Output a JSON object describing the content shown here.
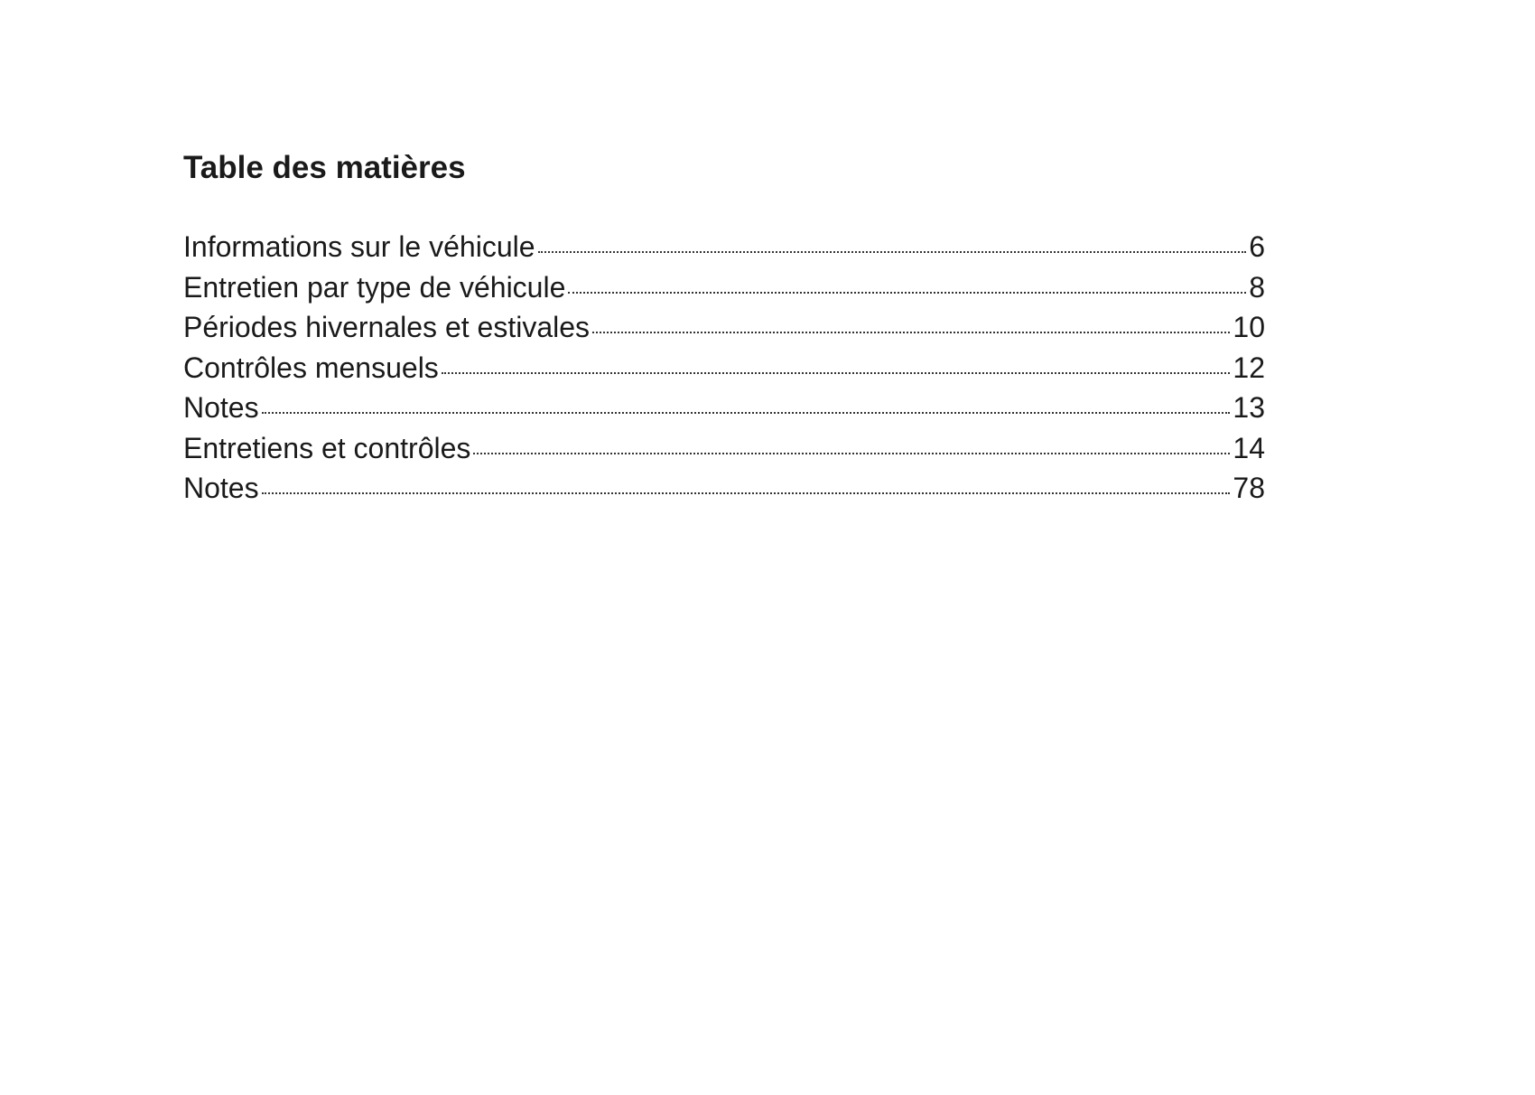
{
  "title": "Table des matières",
  "entries": [
    {
      "label": "Informations sur le véhicule",
      "page": "6"
    },
    {
      "label": "Entretien par type de véhicule",
      "page": "8"
    },
    {
      "label": "Périodes hivernales et estivales",
      "page": "10"
    },
    {
      "label": "Contrôles mensuels",
      "page": "12"
    },
    {
      "label": "Notes",
      "page": "13"
    },
    {
      "label": "Entretiens et contrôles",
      "page": "14"
    },
    {
      "label": "Notes",
      "page": "78"
    }
  ]
}
